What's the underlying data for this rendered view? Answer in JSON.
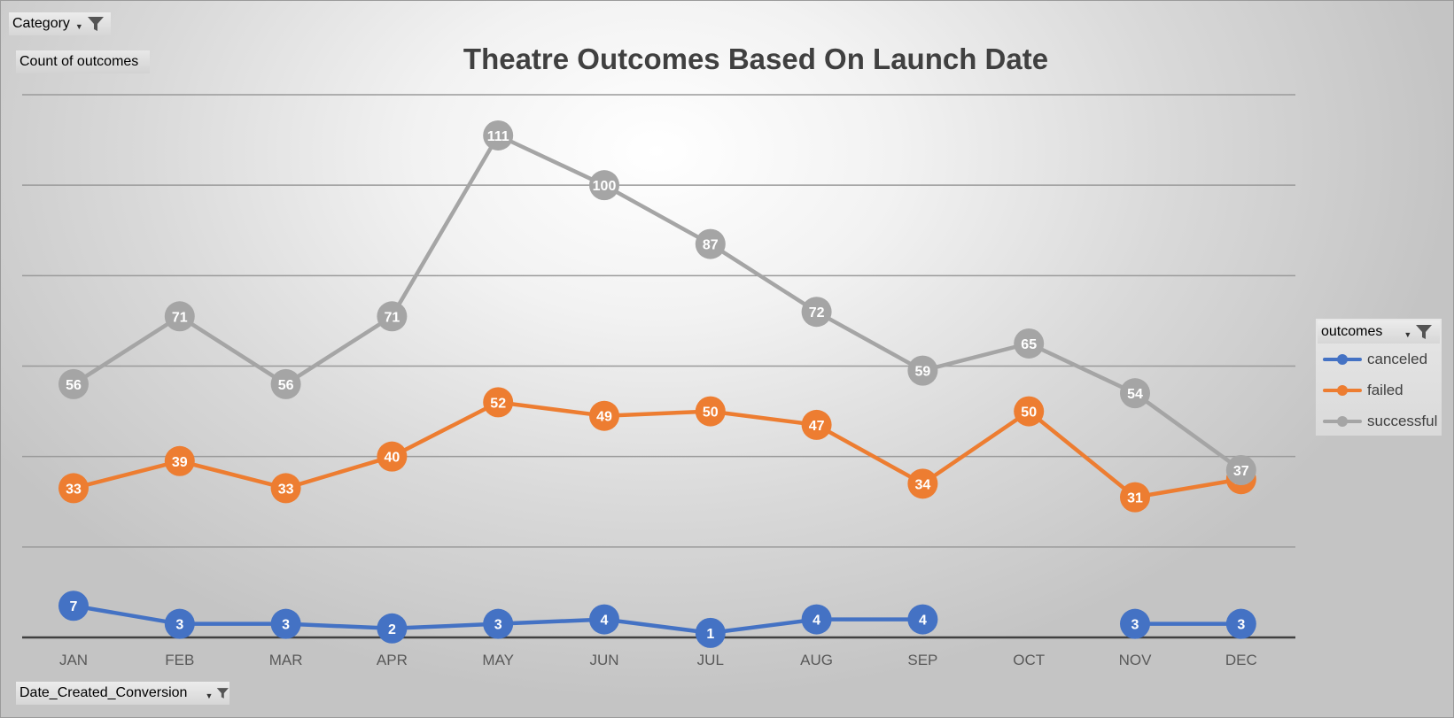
{
  "filters": {
    "category": "Category",
    "values_field": "Count of outcomes",
    "axis_field": "Date_Created_Conversion",
    "legend_field": "outcomes"
  },
  "colors": {
    "canceled": "#4472C4",
    "failed": "#ED7D31",
    "successful": "#A5A5A5"
  },
  "chart_data": {
    "type": "line",
    "title": "Theatre Outcomes Based On Launch Date",
    "categories": [
      "JAN",
      "FEB",
      "MAR",
      "APR",
      "MAY",
      "JUN",
      "JUL",
      "AUG",
      "SEP",
      "OCT",
      "NOV",
      "DEC"
    ],
    "ylim": [
      0,
      120
    ],
    "gridlines": [
      0,
      20,
      40,
      60,
      80,
      100,
      120
    ],
    "y_tick_labels_shown": false,
    "legend_position": "right",
    "series": [
      {
        "name": "canceled",
        "values": [
          7,
          3,
          3,
          2,
          3,
          4,
          1,
          4,
          4,
          null,
          3,
          3
        ]
      },
      {
        "name": "failed",
        "values": [
          33,
          39,
          33,
          40,
          52,
          49,
          50,
          47,
          34,
          50,
          31,
          35
        ]
      },
      {
        "name": "successful",
        "values": [
          56,
          71,
          56,
          71,
          111,
          100,
          87,
          72,
          59,
          65,
          54,
          37
        ]
      }
    ]
  }
}
